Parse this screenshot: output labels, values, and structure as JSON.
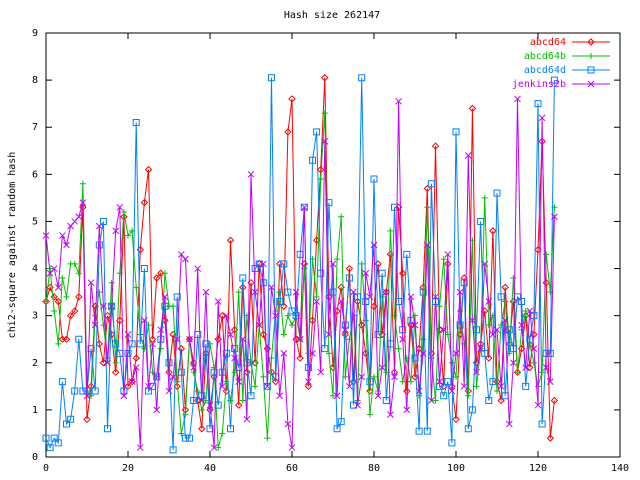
{
  "chart_data": {
    "type": "line",
    "title": "Hash size 262147",
    "y_label": "chi2-square against random hash",
    "x": [
      0,
      1,
      2,
      3,
      4,
      5,
      6,
      7,
      8,
      9,
      10,
      11,
      12,
      13,
      14,
      15,
      16,
      17,
      18,
      19,
      20,
      21,
      22,
      23,
      24,
      25,
      26,
      27,
      28,
      29,
      30,
      31,
      32,
      33,
      34,
      35,
      36,
      37,
      38,
      39,
      40,
      41,
      42,
      43,
      44,
      45,
      46,
      47,
      48,
      49,
      50,
      51,
      52,
      53,
      54,
      55,
      56,
      57,
      58,
      59,
      60,
      61,
      62,
      63,
      64,
      65,
      66,
      67,
      68,
      69,
      70,
      71,
      72,
      73,
      74,
      75,
      76,
      77,
      78,
      79,
      80,
      81,
      82,
      83,
      84,
      85,
      86,
      87,
      88,
      89,
      90,
      91,
      92,
      93,
      94,
      95,
      96,
      97,
      98,
      99,
      100,
      101,
      102,
      103,
      104,
      105,
      106,
      107,
      108,
      109,
      110,
      111,
      112,
      113,
      114,
      115,
      116,
      117,
      118,
      119,
      120,
      121,
      122,
      123,
      124
    ],
    "series": [
      {
        "name": "abcd64",
        "color": "#ff0000",
        "marker": "diamond",
        "values": [
          3.3,
          3.6,
          3.4,
          3.3,
          2.5,
          2.5,
          3.0,
          3.1,
          3.4,
          5.3,
          0.8,
          1.5,
          3.2,
          2.4,
          2.0,
          3.0,
          2.6,
          1.8,
          2.9,
          5.1,
          1.5,
          1.6,
          2.1,
          4.4,
          5.4,
          6.1,
          2.5,
          3.8,
          3.9,
          2.9,
          1.8,
          2.6,
          1.5,
          2.3,
          1.0,
          2.5,
          2.0,
          1.2,
          0.6,
          2.2,
          1.0,
          1.7,
          2.5,
          3.0,
          1.4,
          4.6,
          2.7,
          1.1,
          3.6,
          1.8,
          3.7,
          2.0,
          4.1,
          2.6,
          2.3,
          1.8,
          1.6,
          4.1,
          3.2,
          6.9,
          7.6,
          2.5,
          2.1,
          4.1,
          1.5,
          2.9,
          4.6,
          6.1,
          8.05,
          3.4,
          1.9,
          3.1,
          3.6,
          2.6,
          4.0,
          1.6,
          3.3,
          2.8,
          2.2,
          1.4,
          3.2,
          4.1,
          2.6,
          3.5,
          4.3,
          1.8,
          5.3,
          3.9,
          1.4,
          2.8,
          1.7,
          2.3,
          3.6,
          5.7,
          2.2,
          6.6,
          2.7,
          1.5,
          4.1,
          1.5,
          0.8,
          2.6,
          3.8,
          1.4,
          7.4,
          2.0,
          2.4,
          3.1,
          2.1,
          4.8,
          1.6,
          1.2,
          3.6,
          2.4,
          3.3,
          1.8,
          2.3,
          3.0,
          1.9,
          2.6,
          4.4,
          6.7,
          3.7,
          0.4,
          1.2
        ]
      },
      {
        "name": "abcd64b",
        "color": "#00c000",
        "marker": "plus",
        "values": [
          3.3,
          4.0,
          3.1,
          2.4,
          3.8,
          3.4,
          4.1,
          4.1,
          3.9,
          5.8,
          1.4,
          1.3,
          3.0,
          3.5,
          2.8,
          2.1,
          3.7,
          2.0,
          3.9,
          5.2,
          4.7,
          4.8,
          3.6,
          2.6,
          2.3,
          2.8,
          1.8,
          1.7,
          2.3,
          3.9,
          3.2,
          3.2,
          1.6,
          0.5,
          0.9,
          2.5,
          1.8,
          1.4,
          1.0,
          1.2,
          2.4,
          1.9,
          0.2,
          0.5,
          1.6,
          1.2,
          1.8,
          3.5,
          1.2,
          3.0,
          2.0,
          1.5,
          2.8,
          1.7,
          0.4,
          2.1,
          3.1,
          3.5,
          2.6,
          3.0,
          2.8,
          3.0,
          2.5,
          4.0,
          2.2,
          4.2,
          3.4,
          5.9,
          7.3,
          2.2,
          1.3,
          4.2,
          5.1,
          1.7,
          2.5,
          3.0,
          1.2,
          4.1,
          2.9,
          0.9,
          1.7,
          1.4,
          3.4,
          1.8,
          4.8,
          3.0,
          2.3,
          1.6,
          2.1,
          1.6,
          3.0,
          1.3,
          2.5,
          5.3,
          2.1,
          1.2,
          3.2,
          4.2,
          2.6,
          2.0,
          1.7,
          3.1,
          2.4,
          1.3,
          4.6,
          1.5,
          2.3,
          5.5,
          2.8,
          3.0,
          1.4,
          2.8,
          3.3,
          2.2,
          3.8,
          1.8,
          2.7,
          3.1,
          2.4,
          2.0,
          1.5,
          1.8,
          4.3,
          3.5,
          5.3
        ]
      },
      {
        "name": "abcd64d",
        "color": "#0080ff",
        "marker": "square",
        "values": [
          0.4,
          0.2,
          0.4,
          0.3,
          1.6,
          0.7,
          0.8,
          1.4,
          2.5,
          1.4,
          1.4,
          2.3,
          1.4,
          4.5,
          5.0,
          0.6,
          3.2,
          2.4,
          2.2,
          1.4,
          2.2,
          2.4,
          7.1,
          2.4,
          4.0,
          1.4,
          1.5,
          1.7,
          2.5,
          3.2,
          2.0,
          0.15,
          3.4,
          1.8,
          0.4,
          0.4,
          1.2,
          2.6,
          1.3,
          2.4,
          0.6,
          1.8,
          1.1,
          1.8,
          2.2,
          0.6,
          2.3,
          1.9,
          3.8,
          2.0,
          1.3,
          4.0,
          4.1,
          3.7,
          1.5,
          8.05,
          1.7,
          3.3,
          4.1,
          3.5,
          3.1,
          3.0,
          4.3,
          5.3,
          1.9,
          6.3,
          6.9,
          3.9,
          2.3,
          5.4,
          3.5,
          0.6,
          0.75,
          2.8,
          3.8,
          1.1,
          3.4,
          8.05,
          3.3,
          1.6,
          5.9,
          2.6,
          3.9,
          1.2,
          2.4,
          5.3,
          3.3,
          2.7,
          4.3,
          2.9,
          2.1,
          0.55,
          3.5,
          0.55,
          5.8,
          3.3,
          1.5,
          1.3,
          1.6,
          0.3,
          6.9,
          2.8,
          3.7,
          0.6,
          1.0,
          2.7,
          5.0,
          2.2,
          1.2,
          1.6,
          5.6,
          3.4,
          1.3,
          2.7,
          2.3,
          3.4,
          3.3,
          1.5,
          2.5,
          3.0,
          7.5,
          0.7,
          2.2,
          2.2,
          8.0
        ]
      },
      {
        "name": "jenkins2b",
        "color": "#c000ff",
        "marker": "cross",
        "values": [
          4.7,
          3.9,
          4.0,
          3.6,
          4.7,
          4.5,
          4.9,
          5.0,
          5.1,
          5.4,
          1.3,
          3.7,
          2.8,
          4.9,
          3.2,
          2.0,
          3.2,
          4.8,
          5.3,
          1.3,
          2.6,
          1.6,
          1.9,
          0.2,
          2.9,
          1.5,
          2.4,
          1.0,
          2.7,
          3.4,
          1.4,
          1.7,
          2.5,
          4.3,
          4.2,
          2.5,
          1.9,
          4.0,
          1.2,
          3.5,
          1.1,
          0.2,
          3.3,
          1.5,
          3.0,
          2.6,
          2.1,
          1.6,
          2.5,
          0.8,
          6.0,
          3.5,
          2.8,
          4.1,
          1.5,
          3.6,
          3.0,
          1.3,
          2.2,
          0.7,
          0.2,
          3.5,
          2.5,
          5.3,
          1.6,
          2.2,
          3.3,
          1.8,
          6.7,
          2.6,
          4.1,
          1.3,
          3.3,
          2.7,
          1.5,
          3.5,
          1.1,
          1.7,
          3.9,
          3.4,
          4.5,
          1.3,
          1.9,
          3.5,
          0.9,
          1.7,
          7.55,
          2.5,
          1.0,
          3.4,
          2.8,
          1.4,
          2.2,
          4.5,
          1.2,
          3.4,
          1.6,
          2.7,
          4.3,
          1.4,
          2.2,
          3.5,
          1.5,
          6.4,
          2.9,
          1.8,
          2.3,
          4.1,
          3.3,
          2.6,
          2.7,
          1.5,
          2.9,
          0.7,
          2.0,
          7.6,
          2.8,
          1.9,
          3.1,
          2.3,
          1.1,
          7.2,
          1.9,
          1.6,
          5.1
        ]
      }
    ],
    "xlim": [
      0,
      140
    ],
    "xticks": [
      0,
      20,
      40,
      60,
      80,
      100,
      120,
      140
    ],
    "ylim": [
      0,
      9
    ],
    "yticks": [
      0,
      1,
      2,
      3,
      4,
      5,
      6,
      7,
      8,
      9
    ],
    "legend": "top-right"
  }
}
